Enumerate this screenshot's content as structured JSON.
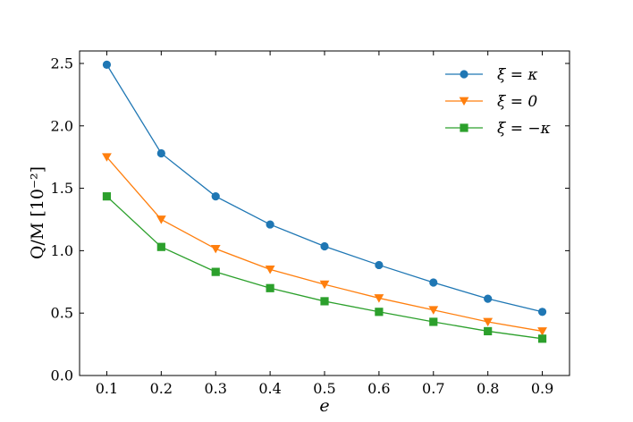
{
  "chart_data": {
    "type": "line",
    "title": "",
    "xlabel": "e",
    "ylabel": "Q/M [10⁻²]",
    "x": [
      0.1,
      0.2,
      0.3,
      0.4,
      0.5,
      0.6,
      0.7,
      0.8,
      0.9
    ],
    "xlim": [
      0.05,
      0.95
    ],
    "ylim": [
      0.0,
      2.6
    ],
    "xticks": [
      "0.1",
      "0.2",
      "0.3",
      "0.4",
      "0.5",
      "0.6",
      "0.7",
      "0.8",
      "0.9"
    ],
    "yticks": [
      "0.0",
      "0.5",
      "1.0",
      "1.5",
      "2.0",
      "2.5"
    ],
    "grid": false,
    "legend_position": "top-right",
    "series": [
      {
        "name": "ξ = κ",
        "color": "#1f77b4",
        "marker": "circle",
        "values": [
          2.49,
          1.78,
          1.435,
          1.21,
          1.035,
          0.885,
          0.745,
          0.615,
          0.51
        ]
      },
      {
        "name": "ξ = 0",
        "color": "#ff7f0e",
        "marker": "triangle-down",
        "values": [
          1.75,
          1.25,
          1.015,
          0.85,
          0.73,
          0.62,
          0.525,
          0.43,
          0.355
        ]
      },
      {
        "name": "ξ = −κ",
        "color": "#2ca02c",
        "marker": "square",
        "values": [
          1.435,
          1.03,
          0.83,
          0.7,
          0.595,
          0.51,
          0.43,
          0.355,
          0.295
        ]
      }
    ]
  }
}
